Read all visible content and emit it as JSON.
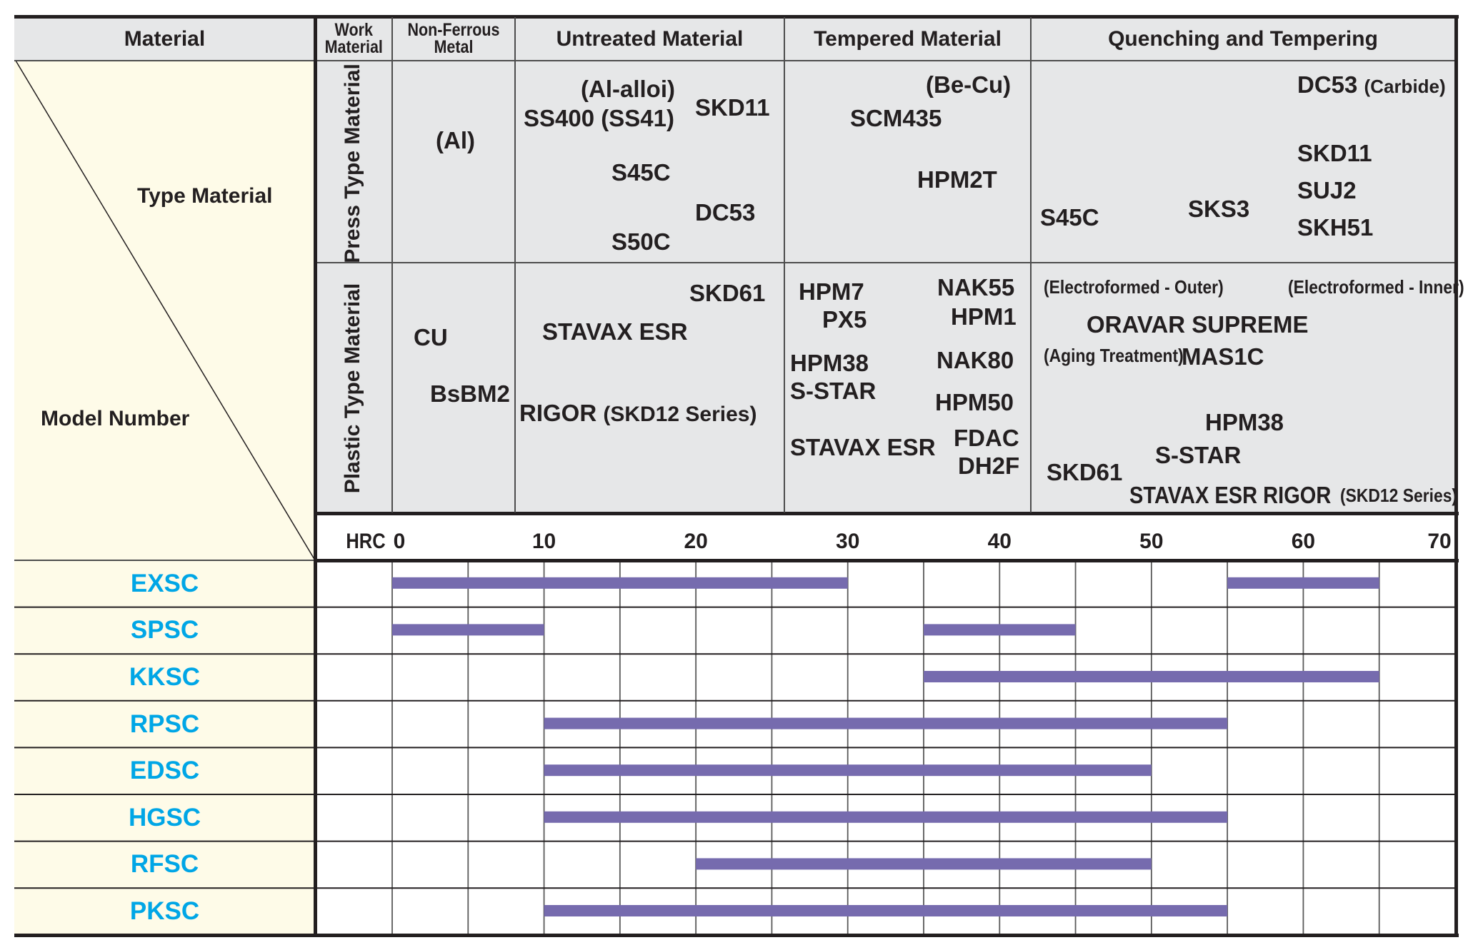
{
  "header": {
    "material": "Material",
    "work_material": [
      "Work",
      "Material"
    ],
    "non_ferrous": [
      "Non-Ferrous",
      "Metal"
    ],
    "untreated": "Untreated Material",
    "tempered": "Tempered Material",
    "quenching": "Quenching and Tempering"
  },
  "side": {
    "type_material": "Type Material",
    "model_number": "Model Number",
    "press_type": "Press Type Material",
    "plastic_type": "Plastic Type Material"
  },
  "press": {
    "non_ferrous": [
      "(Al)"
    ],
    "untreated": [
      "(Al-alloi)",
      "SS400 (SS41)",
      "SKD11",
      "S45C",
      "DC53",
      "S50C"
    ],
    "tempered": [
      "(Be-Cu)",
      "SCM435",
      "HPM2T"
    ],
    "quenching": [
      "DC53",
      "(Carbide)",
      "SKD11",
      "SUJ2",
      "S45C",
      "SKS3",
      "SKH51"
    ]
  },
  "plastic": {
    "non_ferrous": [
      "CU",
      "BsBM2"
    ],
    "untreated": [
      "SKD61",
      "STAVAX ESR",
      "RIGOR",
      "(SKD12 Series)"
    ],
    "tempered": [
      "HPM7",
      "NAK55",
      "PX5",
      "HPM1",
      "HPM38",
      "NAK80",
      "S-STAR",
      "HPM50",
      "STAVAX ESR",
      "FDAC",
      "DH2F"
    ],
    "quenching": [
      "(Electroformed - Outer)",
      "(Electroformed - Inner)",
      "ORAVAR SUPREME",
      "(Aging Treatment)",
      "MAS1C",
      "HPM38",
      "S-STAR",
      "SKD61",
      "STAVAX ESR RIGOR",
      "(SKD12 Series)"
    ]
  },
  "chart_data": {
    "type": "bar",
    "orientation": "horizontal-range",
    "title": "",
    "xlabel": "HRC",
    "xlim": [
      0,
      70
    ],
    "x_ticks": [
      0,
      10,
      20,
      30,
      40,
      50,
      60,
      70
    ],
    "grid_step": 5,
    "grid": true,
    "bar_color": "#766bae",
    "label_color": "#00a6e6",
    "categories": [
      "EXSC",
      "SPSC",
      "KKSC",
      "RPSC",
      "EDSC",
      "HGSC",
      "RFSC",
      "PKSC"
    ],
    "series": [
      {
        "name": "EXSC",
        "ranges": [
          [
            0,
            30
          ],
          [
            55,
            65
          ]
        ]
      },
      {
        "name": "SPSC",
        "ranges": [
          [
            0,
            10
          ],
          [
            35,
            45
          ]
        ]
      },
      {
        "name": "KKSC",
        "ranges": [
          [
            35,
            65
          ]
        ]
      },
      {
        "name": "RPSC",
        "ranges": [
          [
            10,
            55
          ]
        ]
      },
      {
        "name": "EDSC",
        "ranges": [
          [
            10,
            50
          ]
        ]
      },
      {
        "name": "HGSC",
        "ranges": [
          [
            10,
            55
          ]
        ]
      },
      {
        "name": "RFSC",
        "ranges": [
          [
            20,
            50
          ]
        ]
      },
      {
        "name": "PKSC",
        "ranges": [
          [
            10,
            55
          ]
        ]
      }
    ]
  }
}
